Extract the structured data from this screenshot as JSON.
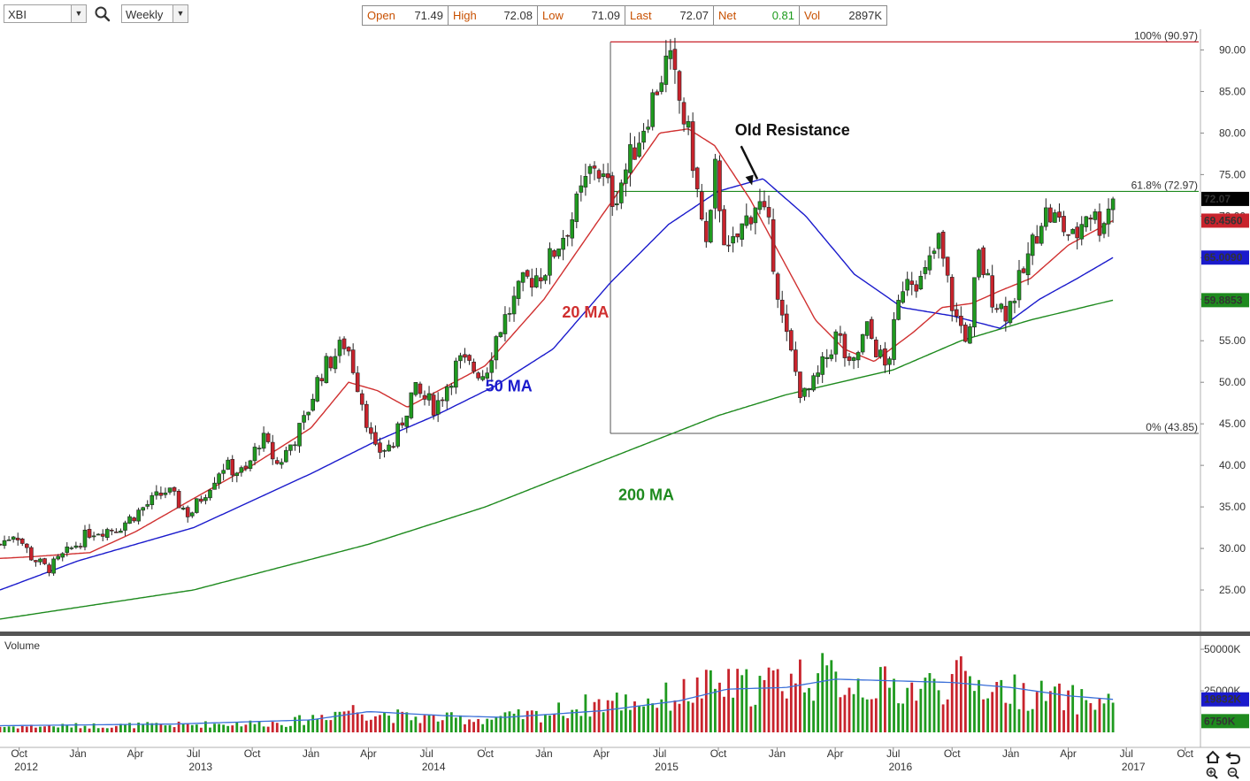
{
  "toolbar": {
    "symbol": "XBI",
    "interval": "Weekly",
    "quote": [
      {
        "label": "Open",
        "value": "71.49"
      },
      {
        "label": "High",
        "value": "72.08"
      },
      {
        "label": "Low",
        "value": "71.09"
      },
      {
        "label": "Last",
        "value": "72.07"
      },
      {
        "label": "Net",
        "value": "0.81"
      },
      {
        "label": "Vol",
        "value": "2897K"
      }
    ]
  },
  "colors": {
    "up": "#1f9a1f",
    "down": "#c8232c",
    "ma20": "#d03030",
    "ma50": "#1a1acc",
    "ma200": "#1e8a1e",
    "fib_high": "#c8232c",
    "fib_mid": "#1e8a1e",
    "fib_low": "#555555",
    "vol_avg": "#3a6fd8"
  },
  "chart_data": [
    {
      "type": "candlestick",
      "title": "",
      "ylim": [
        20,
        92.5
      ],
      "y_ticks": [
        25,
        30,
        35,
        40,
        45,
        50,
        55,
        60,
        65,
        70,
        75,
        80,
        85,
        90
      ],
      "y_tick_labels": [
        "25.00",
        "30.00",
        "35.00",
        "40.00",
        "45.00",
        "50.00",
        "55.00",
        "60.00",
        "65.00",
        "70.00",
        "75.00",
        "80.00",
        "85.00",
        "90.00"
      ],
      "x_range": [
        "2012-09-01",
        "2017-10-25"
      ],
      "x_ticks": [
        {
          "date": "2012-10-01",
          "label": "Oct",
          "year": "2012"
        },
        {
          "date": "2013-01-01",
          "label": "Jan",
          "year": ""
        },
        {
          "date": "2013-04-01",
          "label": "Apr",
          "year": ""
        },
        {
          "date": "2013-07-01",
          "label": "Jul",
          "year": "2013"
        },
        {
          "date": "2013-10-01",
          "label": "Oct",
          "year": ""
        },
        {
          "date": "2014-01-01",
          "label": "Jan",
          "year": ""
        },
        {
          "date": "2014-04-01",
          "label": "Apr",
          "year": ""
        },
        {
          "date": "2014-07-01",
          "label": "Jul",
          "year": "2014"
        },
        {
          "date": "2014-10-01",
          "label": "Oct",
          "year": ""
        },
        {
          "date": "2015-01-01",
          "label": "Jan",
          "year": ""
        },
        {
          "date": "2015-04-01",
          "label": "Apr",
          "year": ""
        },
        {
          "date": "2015-07-01",
          "label": "Jul",
          "year": "2015"
        },
        {
          "date": "2015-10-01",
          "label": "Oct",
          "year": ""
        },
        {
          "date": "2016-01-01",
          "label": "Jan",
          "year": ""
        },
        {
          "date": "2016-04-01",
          "label": "Apr",
          "year": ""
        },
        {
          "date": "2016-07-01",
          "label": "Jul",
          "year": "2016"
        },
        {
          "date": "2016-10-01",
          "label": "Oct",
          "year": ""
        },
        {
          "date": "2017-01-01",
          "label": "Jan",
          "year": ""
        },
        {
          "date": "2017-04-01",
          "label": "Apr",
          "year": ""
        },
        {
          "date": "2017-07-01",
          "label": "Jul",
          "year": "2017"
        },
        {
          "date": "2017-10-01",
          "label": "Oct",
          "year": ""
        }
      ],
      "price_anchors": [
        [
          "2012-09-01",
          30.5
        ],
        [
          "2012-09-25",
          32.0
        ],
        [
          "2012-10-20",
          29.0
        ],
        [
          "2012-11-15",
          27.5
        ],
        [
          "2012-12-15",
          29.5
        ],
        [
          "2013-01-20",
          32.0
        ],
        [
          "2013-03-05",
          32.5
        ],
        [
          "2013-04-15",
          35.0
        ],
        [
          "2013-05-20",
          37.0
        ],
        [
          "2013-06-25",
          34.0
        ],
        [
          "2013-08-15",
          40.0
        ],
        [
          "2013-09-20",
          39.0
        ],
        [
          "2013-10-15",
          43.5
        ],
        [
          "2013-11-10",
          40.0
        ],
        [
          "2013-12-20",
          45.0
        ],
        [
          "2014-01-15",
          51.0
        ],
        [
          "2014-02-25",
          55.0
        ],
        [
          "2014-03-25",
          47.0
        ],
        [
          "2014-04-10",
          41.5
        ],
        [
          "2014-05-10",
          42.5
        ],
        [
          "2014-06-10",
          49.0
        ],
        [
          "2014-07-15",
          47.0
        ],
        [
          "2014-08-20",
          52.5
        ],
        [
          "2014-09-30",
          51.0
        ],
        [
          "2014-10-20",
          56.0
        ],
        [
          "2014-12-01",
          62.0
        ],
        [
          "2015-01-01",
          63.5
        ],
        [
          "2015-02-15",
          70.0
        ],
        [
          "2015-03-20",
          76.5
        ],
        [
          "2015-04-20",
          72.0
        ],
        [
          "2015-06-01",
          80.0
        ],
        [
          "2015-07-01",
          86.5
        ],
        [
          "2015-07-15",
          89.0
        ],
        [
          "2015-07-25",
          86.0
        ],
        [
          "2015-08-20",
          78.0
        ],
        [
          "2015-09-01",
          71.0
        ],
        [
          "2015-09-15",
          65.0
        ],
        [
          "2015-09-25",
          76.0
        ],
        [
          "2015-10-15",
          65.0
        ],
        [
          "2015-11-10",
          69.0
        ],
        [
          "2015-12-01",
          72.0
        ],
        [
          "2015-12-20",
          68.0
        ],
        [
          "2016-01-10",
          57.0
        ],
        [
          "2016-02-10",
          48.0
        ],
        [
          "2016-03-01",
          50.0
        ],
        [
          "2016-04-05",
          56.0
        ],
        [
          "2016-04-25",
          51.0
        ],
        [
          "2016-05-20",
          56.5
        ],
        [
          "2016-06-20",
          51.5
        ],
        [
          "2016-07-20",
          63.5
        ],
        [
          "2016-08-15",
          62.0
        ],
        [
          "2016-09-10",
          67.0
        ],
        [
          "2016-10-05",
          58.0
        ],
        [
          "2016-10-28",
          55.0
        ],
        [
          "2016-11-10",
          65.5
        ],
        [
          "2016-12-05",
          60.0
        ],
        [
          "2016-12-25",
          58.5
        ],
        [
          "2017-01-20",
          63.0
        ],
        [
          "2017-02-20",
          70.5
        ],
        [
          "2017-03-15",
          69.5
        ],
        [
          "2017-04-10",
          67.0
        ],
        [
          "2017-05-01",
          71.0
        ],
        [
          "2017-05-20",
          69.0
        ],
        [
          "2017-06-10",
          72.07
        ]
      ],
      "ma20_anchors": [
        [
          "2012-09-01",
          28.8
        ],
        [
          "2012-10-20",
          29.0
        ],
        [
          "2013-01-20",
          29.5
        ],
        [
          "2013-04-01",
          32.0
        ],
        [
          "2013-07-01",
          36.0
        ],
        [
          "2013-10-01",
          40.0
        ],
        [
          "2014-01-01",
          44.5
        ],
        [
          "2014-03-01",
          50.0
        ],
        [
          "2014-04-15",
          49.0
        ],
        [
          "2014-06-01",
          47.0
        ],
        [
          "2014-08-01",
          49.5
        ],
        [
          "2014-10-01",
          52.0
        ],
        [
          "2015-01-01",
          60.0
        ],
        [
          "2015-04-01",
          70.0
        ],
        [
          "2015-07-01",
          80.0
        ],
        [
          "2015-08-15",
          80.5
        ],
        [
          "2015-09-25",
          78.5
        ],
        [
          "2015-11-20",
          72.0
        ],
        [
          "2016-01-01",
          66.0
        ],
        [
          "2016-03-01",
          57.5
        ],
        [
          "2016-04-15",
          54.0
        ],
        [
          "2016-06-01",
          52.5
        ],
        [
          "2016-08-01",
          56.0
        ],
        [
          "2016-09-15",
          59.0
        ],
        [
          "2016-11-01",
          59.5
        ],
        [
          "2016-12-15",
          61.0
        ],
        [
          "2017-02-01",
          62.5
        ],
        [
          "2017-04-01",
          66.5
        ],
        [
          "2017-06-10",
          69.456
        ]
      ],
      "ma50_anchors": [
        [
          "2012-09-01",
          25.0
        ],
        [
          "2013-01-01",
          28.5
        ],
        [
          "2013-07-01",
          32.5
        ],
        [
          "2014-01-01",
          39.0
        ],
        [
          "2014-04-15",
          43.0
        ],
        [
          "2014-07-15",
          46.0
        ],
        [
          "2014-10-15",
          49.5
        ],
        [
          "2015-01-15",
          54.0
        ],
        [
          "2015-04-15",
          62.0
        ],
        [
          "2015-07-15",
          69.0
        ],
        [
          "2015-10-01",
          73.0
        ],
        [
          "2015-12-10",
          74.5
        ],
        [
          "2016-02-15",
          70.0
        ],
        [
          "2016-05-01",
          63.0
        ],
        [
          "2016-07-15",
          59.0
        ],
        [
          "2016-10-01",
          58.0
        ],
        [
          "2016-12-15",
          56.5
        ],
        [
          "2017-02-15",
          60.0
        ],
        [
          "2017-04-15",
          62.5
        ],
        [
          "2017-06-10",
          65.009
        ]
      ],
      "ma200_anchors": [
        [
          "2012-09-01",
          21.5
        ],
        [
          "2013-07-01",
          25.0
        ],
        [
          "2014-04-01",
          30.5
        ],
        [
          "2014-10-01",
          35.0
        ],
        [
          "2015-04-01",
          40.5
        ],
        [
          "2015-10-01",
          46.0
        ],
        [
          "2016-01-15",
          48.5
        ],
        [
          "2016-07-01",
          51.5
        ],
        [
          "2016-10-15",
          55.0
        ],
        [
          "2017-02-01",
          57.5
        ],
        [
          "2017-06-10",
          59.885
        ]
      ],
      "fibonacci": {
        "start_date": "2015-04-15",
        "end_date": "2017-07-20",
        "levels": [
          {
            "label": "100% (90.97)",
            "value": 90.97
          },
          {
            "label": "61.8% (72.97)",
            "value": 72.97
          },
          {
            "label": "0% (43.85)",
            "value": 43.85
          }
        ]
      },
      "annotations": [
        {
          "text": "Old Resistance",
          "date": "2016-01-25",
          "value": 79.7,
          "arrow_to_date": "2015-11-20",
          "arrow_to_value": 73.5
        },
        {
          "text": "20 MA",
          "date": "2015-03-07",
          "value": 57.8,
          "color_key": "ma20"
        },
        {
          "text": "50 MA",
          "date": "2014-11-07",
          "value": 48.9,
          "color_key": "ma50"
        },
        {
          "text": "200 MA",
          "date": "2015-06-10",
          "value": 35.8,
          "color_key": "ma200"
        }
      ],
      "price_tags": [
        {
          "label": "72.07",
          "value": 72.07,
          "bg": "#000000"
        },
        {
          "label": "69.4560",
          "value": 69.456,
          "bg": "#c8232c"
        },
        {
          "label": "65.0090",
          "value": 65.009,
          "bg": "#1a1acc"
        },
        {
          "label": "59.8853",
          "value": 59.885,
          "bg": "#1e8a1e"
        }
      ]
    },
    {
      "type": "bar",
      "title": "Volume",
      "ylim": [
        0,
        58000
      ],
      "y_ticks": [
        25000,
        50000
      ],
      "y_tick_labels": [
        "25000K",
        "50000K"
      ],
      "volume_anchors": [
        [
          "2012-09-01",
          3500
        ],
        [
          "2013-06-01",
          4500
        ],
        [
          "2013-12-01",
          6000
        ],
        [
          "2014-03-01",
          14000
        ],
        [
          "2014-06-01",
          9000
        ],
        [
          "2014-10-01",
          8000
        ],
        [
          "2015-01-01",
          11000
        ],
        [
          "2015-04-01",
          18000
        ],
        [
          "2015-07-01",
          20000
        ],
        [
          "2015-09-15",
          27000
        ],
        [
          "2015-12-01",
          28000
        ],
        [
          "2016-02-15",
          35000
        ],
        [
          "2016-05-01",
          30000
        ],
        [
          "2016-08-01",
          26000
        ],
        [
          "2016-10-15",
          32000
        ],
        [
          "2017-01-01",
          25000
        ],
        [
          "2017-04-01",
          20000
        ],
        [
          "2017-06-10",
          18000
        ]
      ],
      "volume_avg_anchors": [
        [
          "2012-09-01",
          4000
        ],
        [
          "2013-06-01",
          5000
        ],
        [
          "2014-01-01",
          7500
        ],
        [
          "2014-04-01",
          12500
        ],
        [
          "2014-08-01",
          10000
        ],
        [
          "2014-11-01",
          9000
        ],
        [
          "2015-04-01",
          13000
        ],
        [
          "2015-08-01",
          19000
        ],
        [
          "2015-10-15",
          26000
        ],
        [
          "2016-01-15",
          27000
        ],
        [
          "2016-04-01",
          32000
        ],
        [
          "2016-07-01",
          31000
        ],
        [
          "2016-10-01",
          30000
        ],
        [
          "2017-01-01",
          27000
        ],
        [
          "2017-04-01",
          22000
        ],
        [
          "2017-06-10",
          19832
        ]
      ],
      "vol_tags": [
        {
          "label": "19832K",
          "value": 19832,
          "bg": "#1a1acc"
        },
        {
          "label": "6750K",
          "value": 6750,
          "bg": "#1e8a1e"
        }
      ]
    }
  ]
}
